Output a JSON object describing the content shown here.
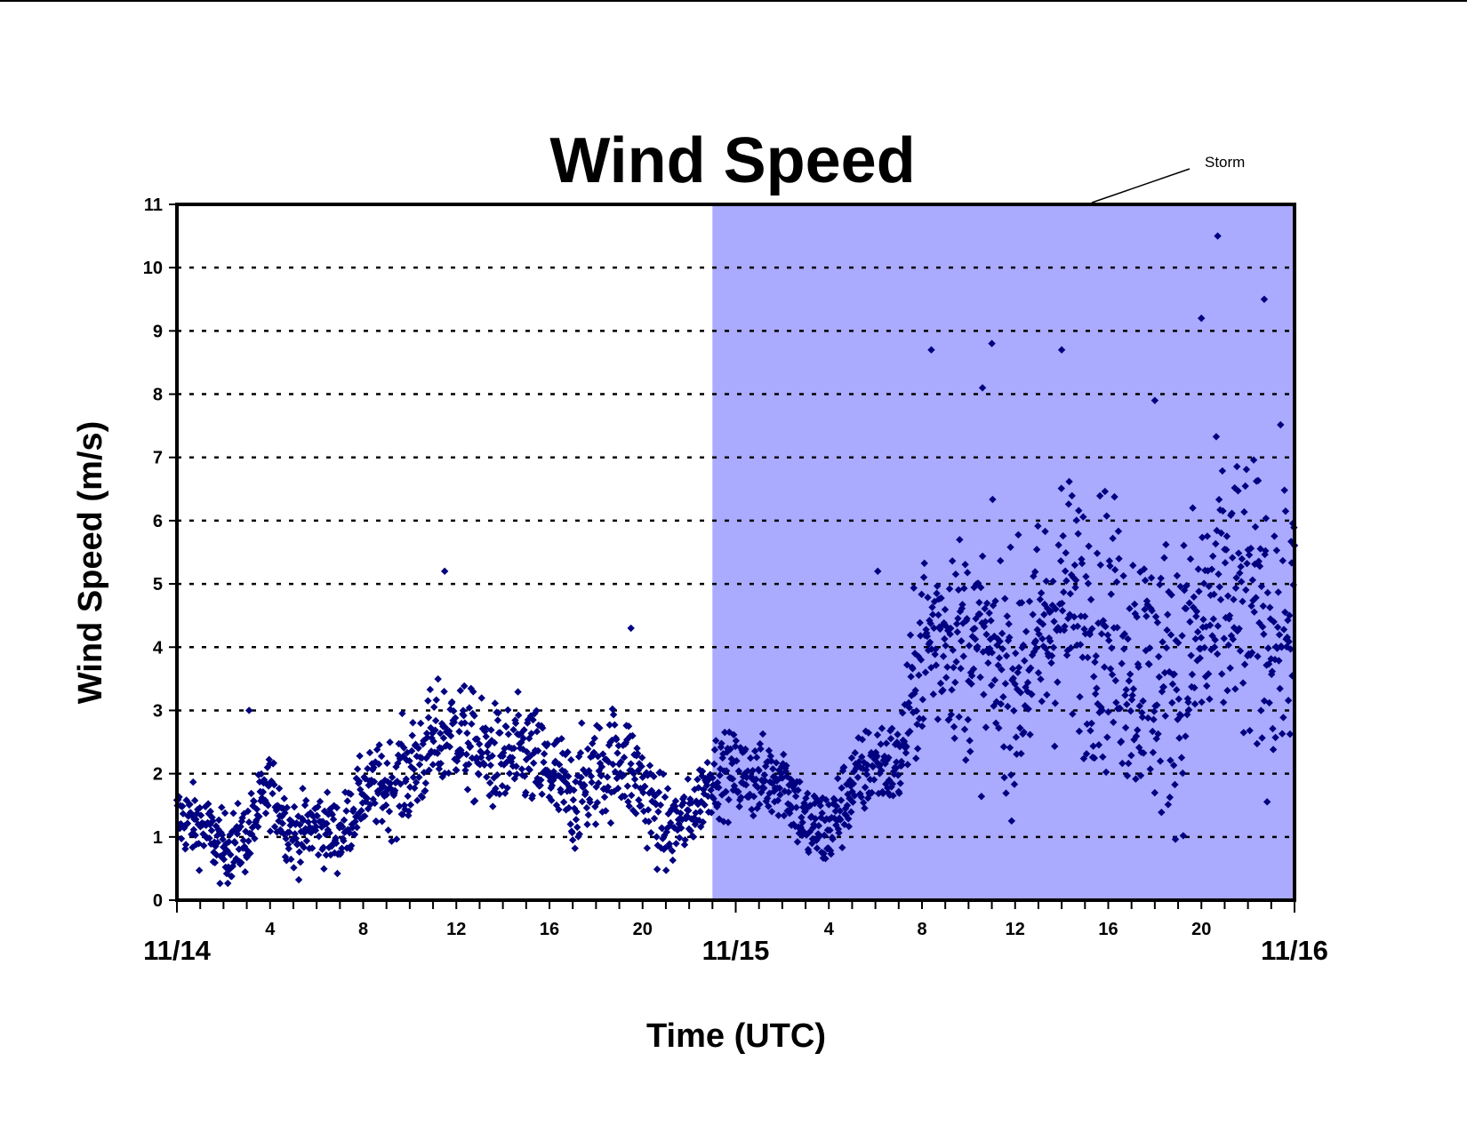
{
  "chart_data": {
    "type": "scatter",
    "title": "Wind Speed",
    "xlabel": "Time (UTC)",
    "ylabel": "Wind Speed (m/s)",
    "xlim_hours": [
      0,
      48
    ],
    "ylim": [
      0,
      11
    ],
    "y_ticks": [
      0,
      1,
      2,
      3,
      4,
      5,
      6,
      7,
      8,
      9,
      10,
      11
    ],
    "x_minor_tick_labels": [
      {
        "hour": 4,
        "label": "4"
      },
      {
        "hour": 8,
        "label": "8"
      },
      {
        "hour": 12,
        "label": "12"
      },
      {
        "hour": 16,
        "label": "16"
      },
      {
        "hour": 20,
        "label": "20"
      },
      {
        "hour": 28,
        "label": "4"
      },
      {
        "hour": 32,
        "label": "8"
      },
      {
        "hour": 36,
        "label": "12"
      },
      {
        "hour": 40,
        "label": "16"
      },
      {
        "hour": 44,
        "label": "20"
      }
    ],
    "x_major_tick_labels": [
      {
        "hour": 0,
        "label": "11/14"
      },
      {
        "hour": 24,
        "label": "11/15"
      },
      {
        "hour": 48,
        "label": "11/16"
      }
    ],
    "grid": "horizontal dashed at y = 1 to 10",
    "shaded_region": {
      "label": "Storm",
      "x_start_hours": 23,
      "x_end_hours": 48,
      "color": "#aaaaff"
    },
    "marker_color": "#000080",
    "marker_shape": "diamond",
    "series": [
      {
        "values_hourly_approx": [
          [
            0,
            1.3
          ],
          [
            1,
            1.2
          ],
          [
            2,
            0.8
          ],
          [
            3,
            1.0
          ],
          [
            4,
            1.8
          ],
          [
            5,
            1.0
          ],
          [
            6,
            1.2
          ],
          [
            7,
            1.0
          ],
          [
            8,
            1.7
          ],
          [
            9,
            1.8
          ],
          [
            10,
            2.0
          ],
          [
            11,
            2.5
          ],
          [
            12,
            2.7
          ],
          [
            13,
            2.3
          ],
          [
            14,
            2.2
          ],
          [
            15,
            2.3
          ],
          [
            16,
            2.0
          ],
          [
            17,
            1.6
          ],
          [
            18,
            2.0
          ],
          [
            19,
            2.3
          ],
          [
            20,
            1.8
          ],
          [
            21,
            1.1
          ],
          [
            22,
            1.3
          ],
          [
            23,
            2.0
          ],
          [
            24,
            2.0
          ],
          [
            25,
            1.9
          ],
          [
            26,
            2.0
          ],
          [
            27,
            1.2
          ],
          [
            28,
            1.1
          ],
          [
            29,
            1.8
          ],
          [
            30,
            2.2
          ],
          [
            31,
            2.1
          ],
          [
            32,
            4.0
          ],
          [
            33,
            4.3
          ],
          [
            34,
            4.0
          ],
          [
            35,
            3.8
          ],
          [
            36,
            3.5
          ],
          [
            37,
            4.0
          ],
          [
            38,
            4.8
          ],
          [
            39,
            4.4
          ],
          [
            40,
            4.3
          ],
          [
            41,
            3.8
          ],
          [
            42,
            3.5
          ],
          [
            43,
            3.6
          ],
          [
            44,
            4.2
          ],
          [
            45,
            4.8
          ],
          [
            46,
            4.6
          ],
          [
            47,
            4.3
          ],
          [
            48,
            4.5
          ]
        ],
        "spread_hourly_approx": [
          [
            0,
            0.4
          ],
          [
            8,
            0.4
          ],
          [
            10,
            0.6
          ],
          [
            20,
            0.6
          ],
          [
            22,
            0.4
          ],
          [
            24,
            0.45
          ],
          [
            31,
            0.5
          ],
          [
            32,
            1.1
          ],
          [
            36,
            1.3
          ],
          [
            40,
            1.5
          ],
          [
            44,
            1.6
          ],
          [
            48,
            1.6
          ]
        ],
        "notable_points": [
          [
            11.5,
            5.2
          ],
          [
            3.1,
            3.0
          ],
          [
            19.5,
            4.3
          ],
          [
            35.0,
            8.8
          ],
          [
            38.0,
            8.7
          ],
          [
            42.0,
            7.9
          ],
          [
            44.0,
            9.2
          ],
          [
            44.7,
            10.5
          ],
          [
            46.7,
            9.5
          ],
          [
            32.4,
            8.7
          ],
          [
            34.6,
            8.1
          ],
          [
            30.1,
            5.2
          ]
        ]
      }
    ]
  }
}
